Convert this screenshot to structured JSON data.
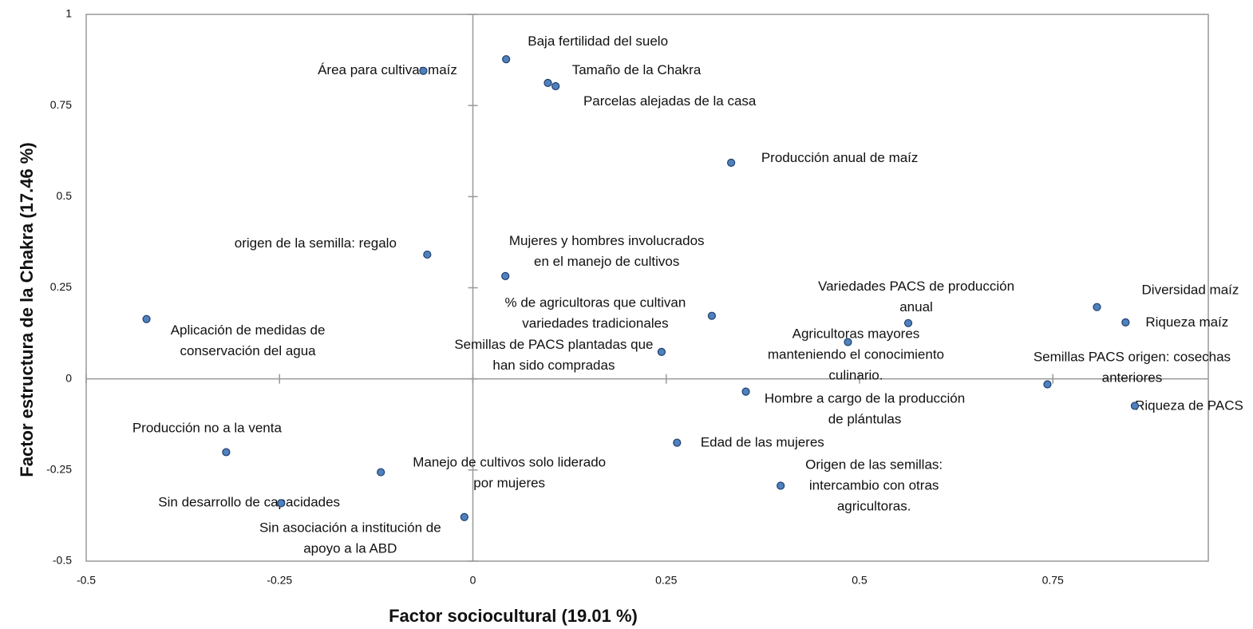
{
  "chart_data": {
    "type": "scatter",
    "x_label": "Factor sociocultural  (19.01 %)",
    "y_label": "Factor estructura de la Chakra (17.46 %)",
    "xlim": [
      -0.5,
      0.951
    ],
    "ylim": [
      -0.5,
      1
    ],
    "xticks": [
      -0.5,
      -0.25,
      0,
      0.25,
      0.5,
      0.75
    ],
    "yticks": [
      -0.5,
      -0.25,
      0,
      0.25,
      0.5,
      0.75,
      1
    ],
    "color": "#4f81bd",
    "grid": false,
    "x": [
      -0.064,
      0.043,
      0.097,
      0.107,
      0.334,
      -0.059,
      0.042,
      -0.422,
      0.309,
      0.244,
      0.563,
      0.485,
      0.807,
      0.844,
      0.743,
      0.856,
      0.353,
      0.264,
      0.398,
      -0.319,
      -0.119,
      -0.248,
      -0.011
    ],
    "values": [
      0.845,
      0.877,
      0.812,
      0.803,
      0.593,
      0.341,
      0.282,
      0.164,
      0.173,
      0.074,
      0.153,
      0.101,
      0.197,
      0.155,
      -0.015,
      -0.074,
      -0.035,
      -0.175,
      -0.293,
      -0.201,
      -0.256,
      -0.341,
      -0.379
    ],
    "labels": [
      [
        "Área para cultivar maíz"
      ],
      [
        "Baja fertilidad del suelo"
      ],
      [
        "Tamaño de la Chakra"
      ],
      [
        "Parcelas alejadas de la casa"
      ],
      [
        "Producción anual de maíz"
      ],
      [
        "origen de la semilla: regalo"
      ],
      [
        "Mujeres y hombres involucrados",
        "en el manejo de cultivos"
      ],
      [
        "Aplicación de medidas de",
        "conservación del agua"
      ],
      [
        "% de agricultoras que cultivan",
        "variedades tradicionales"
      ],
      [
        "Semillas de PACS plantadas que",
        "han sido compradas"
      ],
      [
        "Variedades PACS de producción",
        "anual"
      ],
      [
        "Agricultoras mayores",
        "manteniendo el conocimiento",
        "culinario."
      ],
      [
        "Diversidad maíz"
      ],
      [
        "Riqueza maíz"
      ],
      [
        "Semillas PACS origen: cosechas",
        "anteriores"
      ],
      [
        "Riqueza de PACS"
      ],
      [
        "Hombre a cargo de la producción",
        "de plántulas"
      ],
      [
        "Edad de las mujeres"
      ],
      [
        "Origen de las semillas:",
        "intercambio con otras",
        "agricultoras."
      ],
      [
        "Producción no a la venta"
      ],
      [
        "Manejo de cultivos solo liderado",
        "por mujeres"
      ],
      [
        "Sin desarrollo de capacidades"
      ],
      [
        "Sin asociación a institución de",
        "apoyo a la ABD"
      ]
    ]
  }
}
